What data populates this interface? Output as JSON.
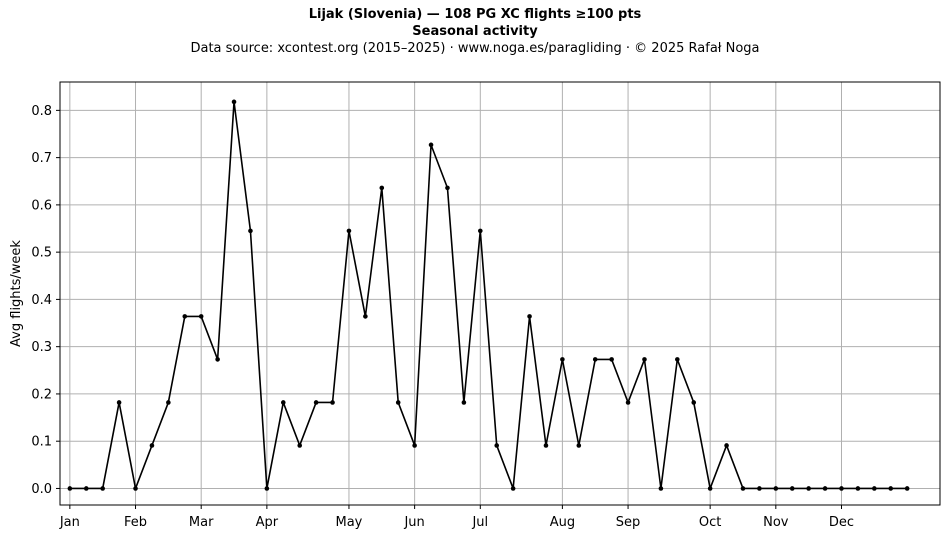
{
  "chart_data": {
    "type": "line",
    "title": "Lijak (Slovenia)  —  108 PG XC flights ≥100 pts",
    "subtitle": "Seasonal activity",
    "source": "Data source: xcontest.org (2015–2025)  ·  www.noga.es/paragliding  ·  © 2025 Rafał Noga",
    "xlabel": "",
    "ylabel": "Avg flights/week",
    "ylim": [
      -0.035,
      0.86
    ],
    "xlim": [
      -0.6,
      53.0
    ],
    "yticks": [
      0.0,
      0.1,
      0.2,
      0.3,
      0.4,
      0.5,
      0.6,
      0.7,
      0.8
    ],
    "ytick_labels": [
      "0.0",
      "0.1",
      "0.2",
      "0.3",
      "0.4",
      "0.5",
      "0.6",
      "0.7",
      "0.8"
    ],
    "month_labels": [
      "Jan",
      "Feb",
      "Mar",
      "Apr",
      "May",
      "Jun",
      "Jul",
      "Aug",
      "Sep",
      "Oct",
      "Nov",
      "Dec"
    ],
    "month_week_positions": [
      0,
      4,
      8,
      12,
      17,
      21,
      25,
      30,
      34,
      39,
      43,
      47
    ],
    "grid": true,
    "line_color": "#000000",
    "grid_color": "#b0b0b0",
    "x": [
      0,
      1,
      2,
      3,
      4,
      5,
      6,
      7,
      8,
      9,
      10,
      11,
      12,
      13,
      14,
      15,
      16,
      17,
      18,
      19,
      20,
      21,
      22,
      23,
      24,
      25,
      26,
      27,
      28,
      29,
      30,
      31,
      32,
      33,
      34,
      35,
      36,
      37,
      38,
      39,
      40,
      41,
      42,
      43,
      44,
      45,
      46,
      47,
      48,
      49,
      50,
      51
    ],
    "y": [
      0,
      0,
      0,
      0.182,
      0,
      0.091,
      0.182,
      0.364,
      0.364,
      0.273,
      0.818,
      0.545,
      0,
      0.182,
      0.091,
      0.182,
      0.182,
      0.545,
      0.364,
      0.636,
      0.182,
      0.091,
      0.727,
      0.636,
      0.182,
      0.545,
      0.091,
      0,
      0.364,
      0.091,
      0.273,
      0.091,
      0.273,
      0.273,
      0.182,
      0.273,
      0,
      0.273,
      0.182,
      0,
      0.091,
      0,
      0,
      0,
      0,
      0,
      0,
      0,
      0,
      0,
      0,
      0
    ]
  }
}
